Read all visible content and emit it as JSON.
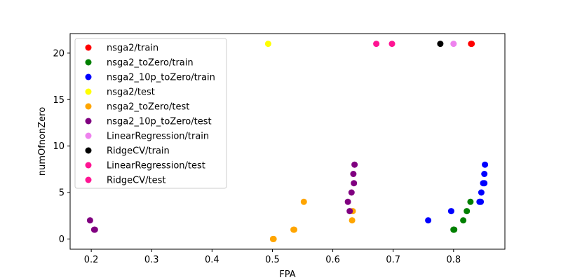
{
  "chart_data": {
    "type": "scatter",
    "title": "",
    "xlabel": "FPA",
    "ylabel": "numOfnonZero",
    "xlim": [
      0.165,
      0.885
    ],
    "ylim": [
      -1.1,
      22.1
    ],
    "xticks": [
      0.2,
      0.3,
      0.4,
      0.5,
      0.6,
      0.7,
      0.8
    ],
    "xtick_labels": [
      "0.2",
      "0.3",
      "0.4",
      "0.5",
      "0.6",
      "0.7",
      "0.8"
    ],
    "yticks": [
      0,
      5,
      10,
      15,
      20
    ],
    "ytick_labels": [
      "0",
      "5",
      "10",
      "15",
      "20"
    ],
    "grid": false,
    "legend_position": "upper-left",
    "series": [
      {
        "name": "nsga2/train",
        "color": "#ff0000",
        "points": [
          [
            0.83,
            21
          ],
          [
            0.829,
            21
          ]
        ]
      },
      {
        "name": "nsga2_toZero/train",
        "color": "#008000",
        "points": [
          [
            0.8,
            1
          ],
          [
            0.801,
            1
          ],
          [
            0.816,
            2
          ],
          [
            0.822,
            3
          ],
          [
            0.828,
            4
          ],
          [
            0.8,
            1
          ]
        ]
      },
      {
        "name": "nsga2_10p_toZero/train",
        "color": "#0000ff",
        "points": [
          [
            0.758,
            2
          ],
          [
            0.796,
            3
          ],
          [
            0.843,
            4
          ],
          [
            0.845,
            4
          ],
          [
            0.846,
            5
          ],
          [
            0.849,
            6
          ],
          [
            0.851,
            6
          ],
          [
            0.851,
            7
          ],
          [
            0.852,
            8
          ]
        ]
      },
      {
        "name": "nsga2/test",
        "color": "#ffff00",
        "points": [
          [
            0.493,
            21
          ]
        ]
      },
      {
        "name": "nsga2_toZero/test",
        "color": "#ffa500",
        "points": [
          [
            0.501,
            0
          ],
          [
            0.502,
            0
          ],
          [
            0.535,
            1
          ],
          [
            0.536,
            1
          ],
          [
            0.552,
            4
          ],
          [
            0.632,
            2
          ],
          [
            0.633,
            3
          ]
        ]
      },
      {
        "name": "nsga2_10p_toZero/test",
        "color": "#800080",
        "points": [
          [
            0.198,
            2
          ],
          [
            0.205,
            1
          ],
          [
            0.206,
            1
          ],
          [
            0.625,
            4
          ],
          [
            0.628,
            3
          ],
          [
            0.631,
            5
          ],
          [
            0.635,
            6
          ],
          [
            0.634,
            7
          ],
          [
            0.636,
            8
          ]
        ]
      },
      {
        "name": "LinearRegression/train",
        "color": "#ee82ee",
        "points": [
          [
            0.8,
            21
          ]
        ]
      },
      {
        "name": "RidgeCV/train",
        "color": "#000000",
        "points": [
          [
            0.778,
            21
          ]
        ]
      },
      {
        "name": "LinearRegression/test",
        "color": "#ff1493",
        "points": [
          [
            0.672,
            21
          ]
        ]
      },
      {
        "name": "RidgeCV/test",
        "color": "#ff1493",
        "points": [
          [
            0.698,
            21
          ]
        ]
      }
    ]
  }
}
